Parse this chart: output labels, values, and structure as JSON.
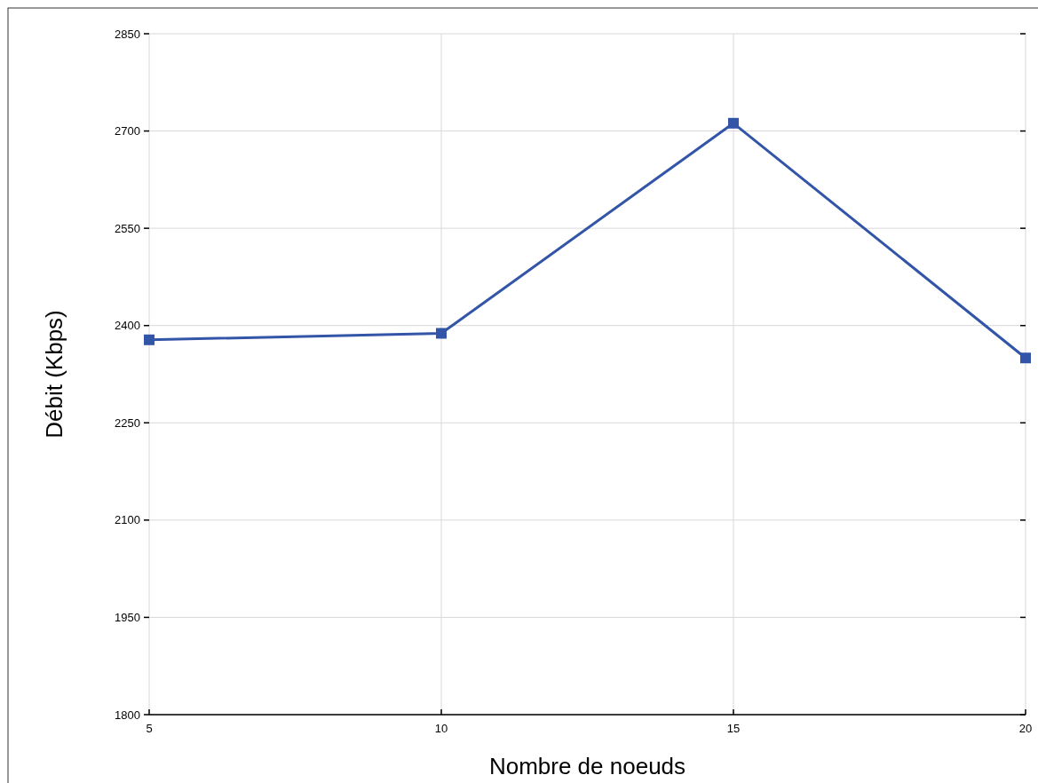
{
  "chart_data": {
    "type": "line",
    "xlabel": "Nombre de noeuds",
    "ylabel": "Débit (Kbps)",
    "x": [
      5,
      10,
      15,
      20
    ],
    "series": [
      {
        "color": "#3355a8",
        "values": [
          2378,
          2388,
          2712,
          2350
        ]
      }
    ],
    "xlim": [
      5,
      20
    ],
    "xticks": [
      5,
      10,
      15,
      20
    ],
    "ylim": [
      1800,
      2850
    ],
    "yticks": [
      1800,
      1950,
      2100,
      2250,
      2400,
      2550,
      2700,
      2850
    ],
    "grid": true,
    "marker": "square",
    "line_style": "solid"
  }
}
